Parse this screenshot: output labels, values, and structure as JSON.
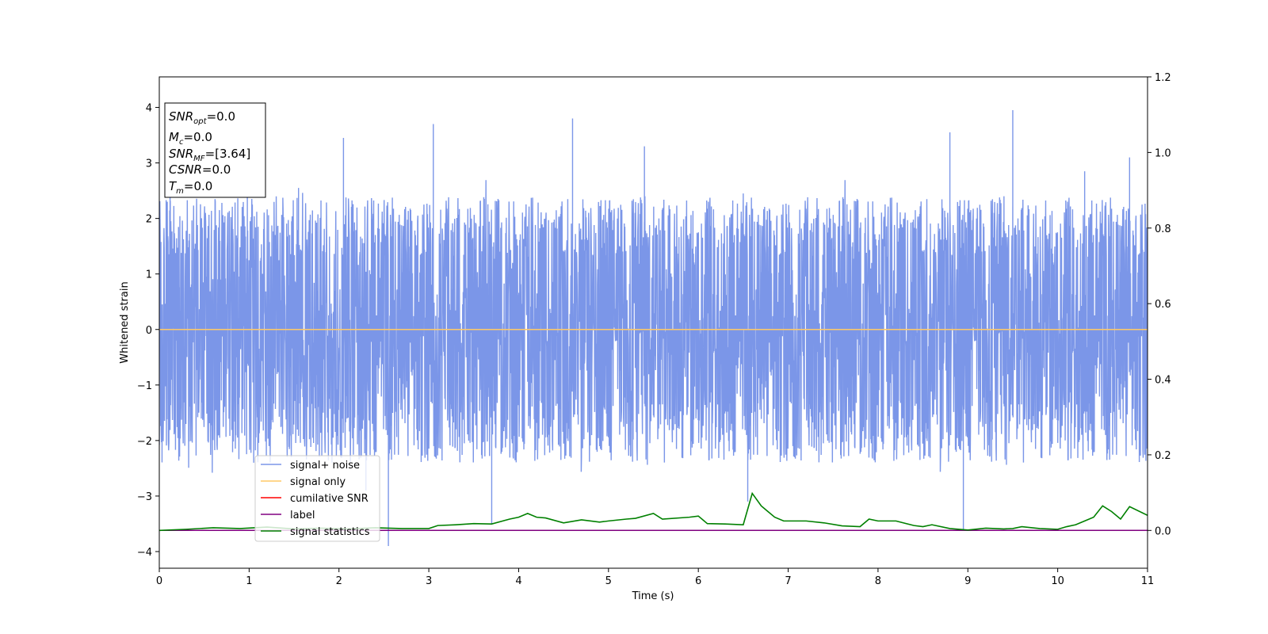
{
  "chart_data": {
    "type": "line",
    "xlabel": "Time (s)",
    "ylabel": "Whitened strain",
    "xlim": [
      0,
      11
    ],
    "ylim": [
      -4.3,
      4.55
    ],
    "y2lim": [
      -0.1,
      1.2
    ],
    "x_ticks": [
      "0",
      "1",
      "2",
      "3",
      "4",
      "5",
      "6",
      "7",
      "8",
      "9",
      "10",
      "11"
    ],
    "y_ticks": [
      "4",
      "3",
      "2",
      "1",
      "0",
      "−1",
      "−2",
      "−3",
      "−4"
    ],
    "y2_ticks": [
      "1.2",
      "1.0",
      "0.8",
      "0.6",
      "0.4",
      "0.2",
      "0.0"
    ],
    "annotation_lines": [
      "=0.0",
      "=0.0",
      "=[3.64]",
      "=0.0",
      "=0.0"
    ],
    "annotation_symbols": [
      "SNR",
      "M",
      "SNR",
      "CSNR",
      "T"
    ],
    "annotation_subscripts": [
      "opt",
      "c",
      "MF",
      "",
      "m"
    ],
    "legend": {
      "placement": "lower-left",
      "entries": [
        "signal+ noise",
        "signal only",
        "cumilative SNR",
        "label",
        "signal statistics"
      ]
    },
    "series": [
      {
        "name": "signal+ noise",
        "axis": "left",
        "color": "#7b96e8",
        "style": "dense noise, roughly within ±2.5 with peaks near ±4",
        "peaks": [
          [
            0.12,
            2.45
          ],
          [
            0.98,
            3.25
          ],
          [
            1.55,
            2.55
          ],
          [
            2.05,
            3.45
          ],
          [
            2.3,
            -2.9
          ],
          [
            2.55,
            -3.9
          ],
          [
            3.05,
            3.7
          ],
          [
            3.7,
            -3.5
          ],
          [
            4.6,
            3.8
          ],
          [
            5.4,
            3.3
          ],
          [
            6.5,
            2.45
          ],
          [
            6.55,
            -3.1
          ],
          [
            8.8,
            3.55
          ],
          [
            8.95,
            -3.6
          ],
          [
            9.5,
            3.95
          ],
          [
            10.3,
            2.85
          ],
          [
            10.8,
            3.1
          ]
        ]
      },
      {
        "name": "signal only",
        "axis": "left",
        "color": "#ffc966",
        "x": [
          0,
          11
        ],
        "y": [
          0,
          0
        ]
      },
      {
        "name": "cumilative SNR",
        "axis": "right",
        "color": "#ff0000",
        "x": [
          0,
          11
        ],
        "y": [
          0,
          0
        ]
      },
      {
        "name": "label",
        "axis": "right",
        "color": "#800080",
        "x": [
          0,
          11
        ],
        "y": [
          0,
          0
        ]
      },
      {
        "name": "signal statistics",
        "axis": "right",
        "color": "#008000",
        "x": [
          0,
          0.3,
          0.6,
          0.9,
          1.2,
          1.5,
          1.8,
          2.1,
          2.4,
          2.7,
          3.0,
          3.1,
          3.3,
          3.5,
          3.7,
          3.9,
          4.0,
          4.1,
          4.2,
          4.3,
          4.5,
          4.7,
          4.9,
          5.0,
          5.2,
          5.3,
          5.5,
          5.6,
          5.9,
          6.0,
          6.1,
          6.3,
          6.5,
          6.6,
          6.7,
          6.75,
          6.85,
          6.95,
          7.2,
          7.4,
          7.6,
          7.8,
          7.9,
          8.0,
          8.2,
          8.4,
          8.5,
          8.6,
          8.8,
          9.0,
          9.2,
          9.4,
          9.5,
          9.6,
          9.8,
          10.0,
          10.1,
          10.2,
          10.3,
          10.4,
          10.5,
          10.6,
          10.7,
          10.8,
          11.0
        ],
        "y": [
          0.0,
          0.003,
          0.007,
          0.005,
          0.009,
          0.004,
          0.006,
          0.004,
          0.007,
          0.005,
          0.005,
          0.013,
          0.015,
          0.018,
          0.017,
          0.03,
          0.035,
          0.045,
          0.035,
          0.033,
          0.02,
          0.028,
          0.022,
          0.025,
          0.03,
          0.032,
          0.045,
          0.03,
          0.035,
          0.038,
          0.018,
          0.017,
          0.015,
          0.098,
          0.065,
          0.055,
          0.035,
          0.025,
          0.025,
          0.02,
          0.012,
          0.01,
          0.03,
          0.025,
          0.025,
          0.013,
          0.01,
          0.015,
          0.005,
          0.001,
          0.006,
          0.004,
          0.005,
          0.01,
          0.005,
          0.003,
          0.01,
          0.015,
          0.025,
          0.035,
          0.065,
          0.05,
          0.03,
          0.063,
          0.04
        ]
      }
    ]
  }
}
